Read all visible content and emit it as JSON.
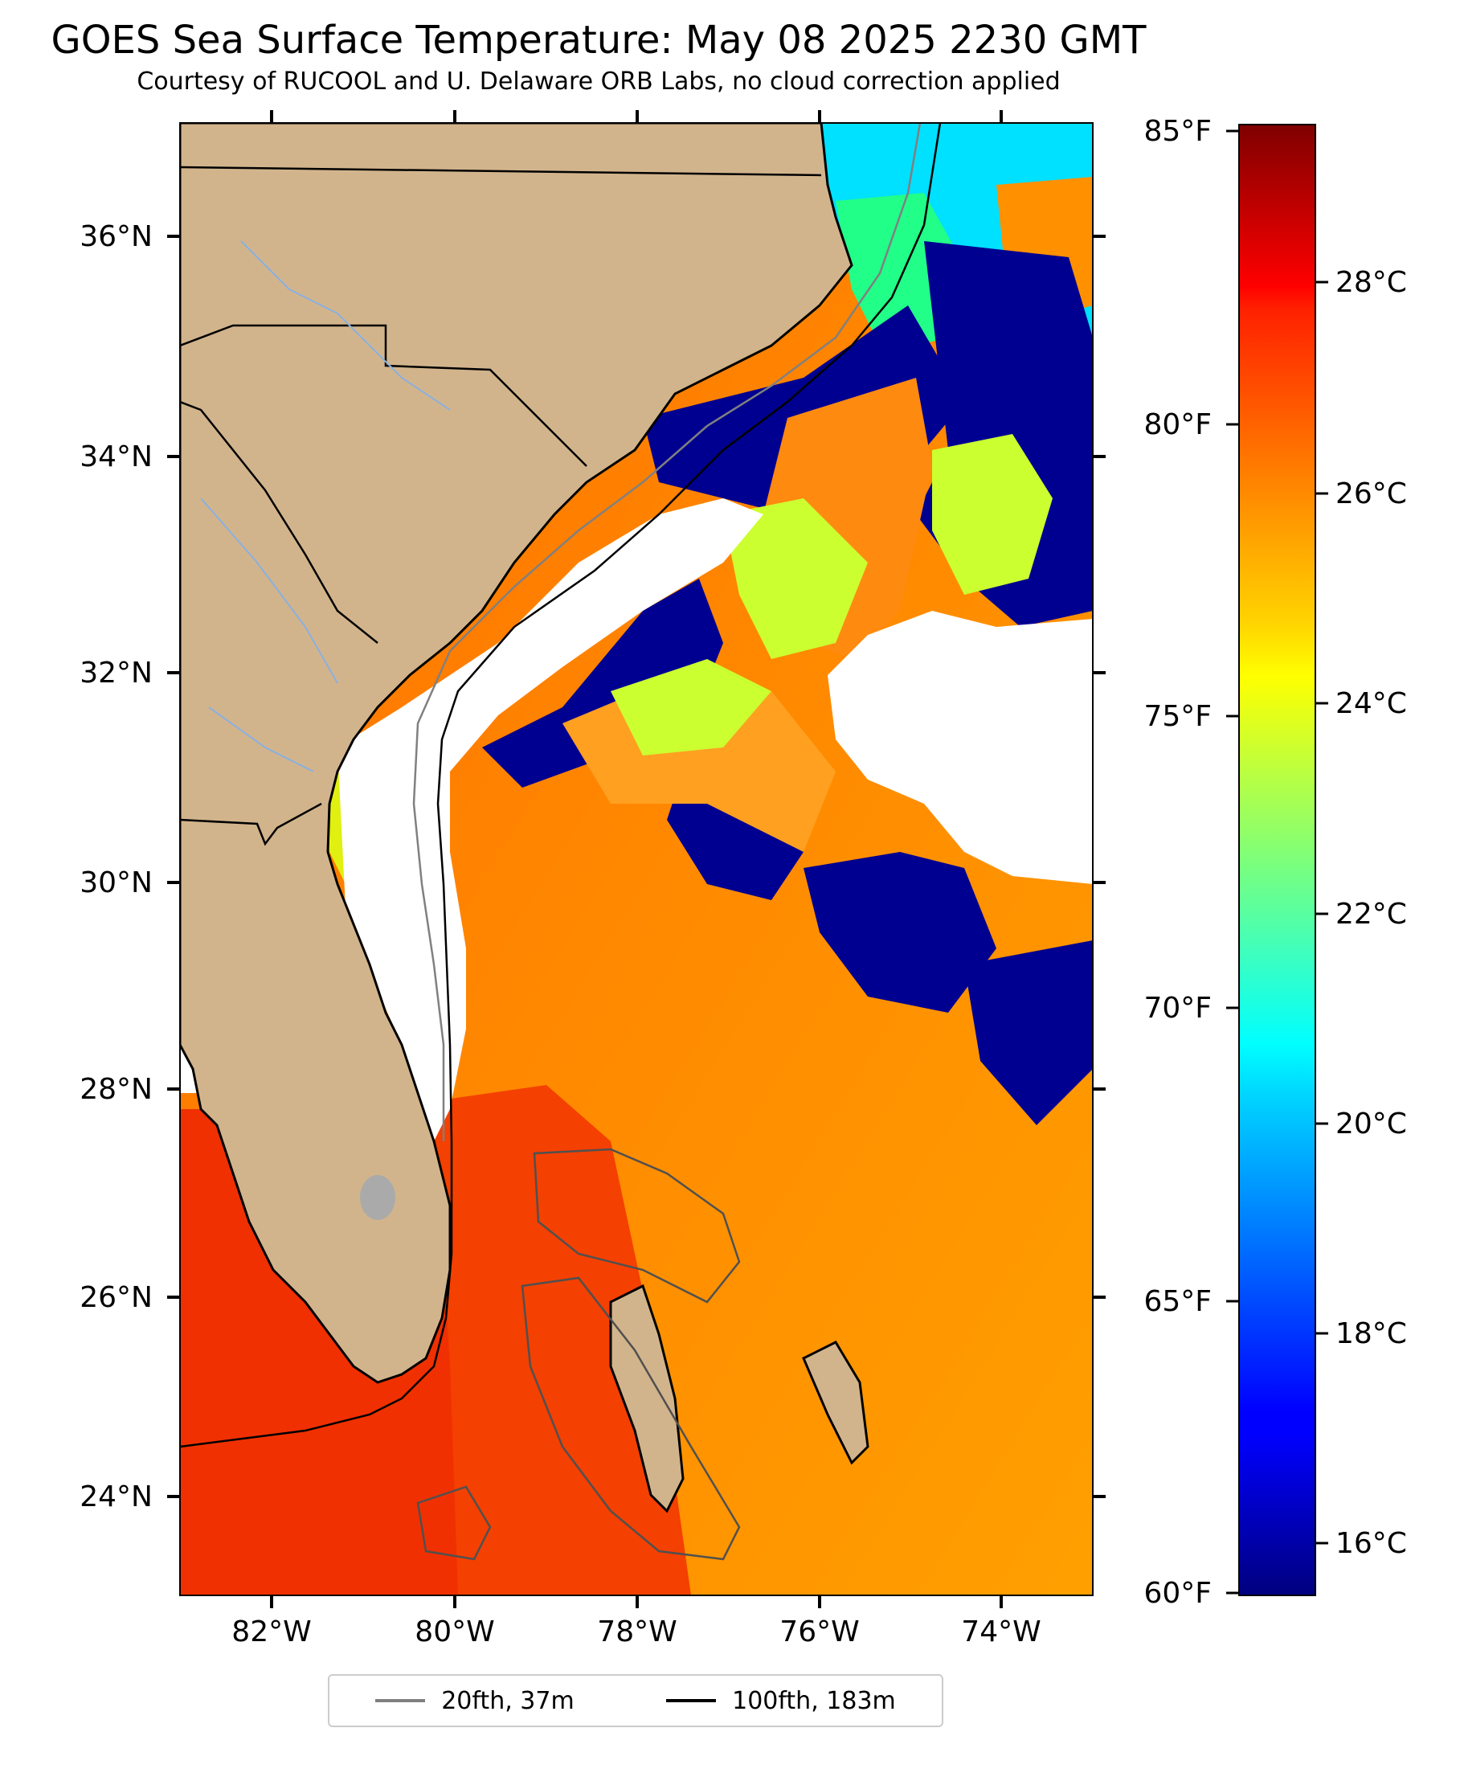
{
  "title": "GOES Sea Surface Temperature: May 08 2025 2230 GMT",
  "subtitle": "Courtesy of RUCOOL and U. Delaware ORB Labs, no cloud correction applied",
  "map": {
    "lon_range": [
      -83,
      -73
    ],
    "lat_range": [
      23,
      37
    ],
    "lon_ticks": [
      "82°W",
      "80°W",
      "78°W",
      "76°W",
      "74°W"
    ],
    "lat_ticks": [
      "24°N",
      "26°N",
      "28°N",
      "30°N",
      "32°N",
      "34°N",
      "36°N"
    ],
    "land_color": "#d2b48c",
    "cloud_color": "#ffffff"
  },
  "colorbar": {
    "colormap": "jet",
    "range_c": [
      15.5,
      29.5
    ],
    "fahrenheit_labels": [
      "85°F",
      "80°F",
      "75°F",
      "70°F",
      "65°F",
      "60°F"
    ],
    "celsius_labels": [
      "28°C",
      "26°C",
      "24°C",
      "22°C",
      "20°C",
      "18°C",
      "16°C"
    ]
  },
  "legend": {
    "items": [
      {
        "label": "20fth, 37m",
        "color": "#808080"
      },
      {
        "label": "100fth, 183m",
        "color": "#000000"
      }
    ]
  }
}
